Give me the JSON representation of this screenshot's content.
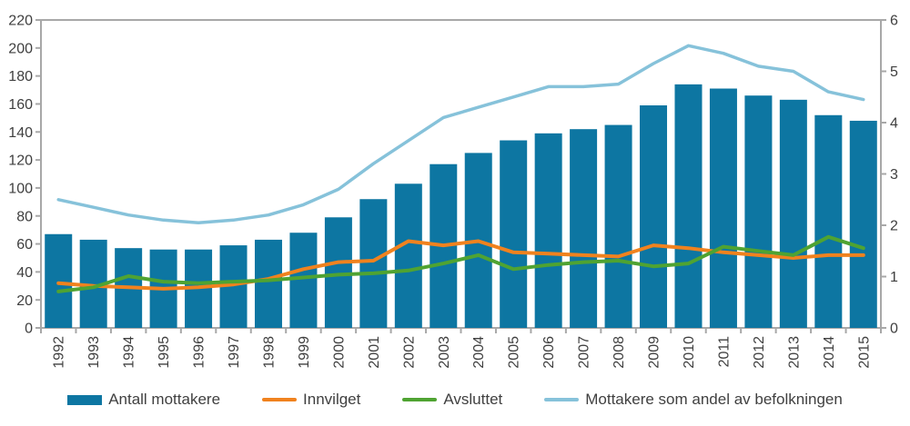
{
  "chart_data": {
    "type": "bar",
    "subtype": "bar-line-combo",
    "title": "",
    "categories": [
      "1992",
      "1993",
      "1994",
      "1995",
      "1996",
      "1997",
      "1998",
      "1999",
      "2000",
      "2001",
      "2002",
      "2003",
      "2004",
      "2005",
      "2006",
      "2007",
      "2008",
      "2009",
      "2010",
      "2011",
      "2012",
      "2013",
      "2014",
      "2015"
    ],
    "series": [
      {
        "name": "Antall mottakere",
        "type": "bar",
        "axis": "left",
        "color": "#0d76a2",
        "values": [
          67,
          63,
          57,
          56,
          56,
          59,
          63,
          68,
          79,
          92,
          103,
          117,
          125,
          134,
          139,
          142,
          145,
          159,
          174,
          171,
          166,
          163,
          152,
          148
        ]
      },
      {
        "name": "Innvilget",
        "type": "line",
        "axis": "left",
        "color": "#f0821e",
        "values": [
          32,
          30,
          29,
          28,
          29,
          31,
          35,
          42,
          47,
          48,
          62,
          59,
          62,
          54,
          53,
          52,
          51,
          59,
          57,
          54,
          52,
          50,
          52,
          52
        ]
      },
      {
        "name": "Avsluttet",
        "type": "line",
        "axis": "left",
        "color": "#4fa332",
        "values": [
          26,
          29,
          37,
          33,
          32,
          33,
          34,
          36,
          38,
          39,
          41,
          46,
          52,
          42,
          45,
          47,
          48,
          44,
          46,
          58,
          55,
          52,
          65,
          57
        ]
      },
      {
        "name": "Mottakere som andel av befolkningen",
        "type": "line",
        "axis": "right",
        "color": "#86c2da",
        "values": [
          2.5,
          2.35,
          2.2,
          2.1,
          2.05,
          2.1,
          2.2,
          2.4,
          2.7,
          3.2,
          3.65,
          4.1,
          4.3,
          4.5,
          4.7,
          4.7,
          4.75,
          5.15,
          5.5,
          5.35,
          5.1,
          5.0,
          4.6,
          4.45
        ]
      }
    ],
    "left_axis": {
      "min": 0,
      "max": 220,
      "step": 20,
      "tick_labels": [
        "0",
        "20",
        "40",
        "60",
        "80",
        "100",
        "120",
        "140",
        "160",
        "180",
        "200",
        "220"
      ]
    },
    "right_axis": {
      "min": 0,
      "max": 6,
      "step": 1,
      "tick_labels": [
        "0",
        "1",
        "2",
        "3",
        "4",
        "5",
        "6"
      ]
    },
    "grid": "off",
    "legend_position": "bottom",
    "colors": {
      "axis_line": "#a8a8a8",
      "tick_text": "#3f3f3f",
      "background": "#ffffff"
    }
  }
}
